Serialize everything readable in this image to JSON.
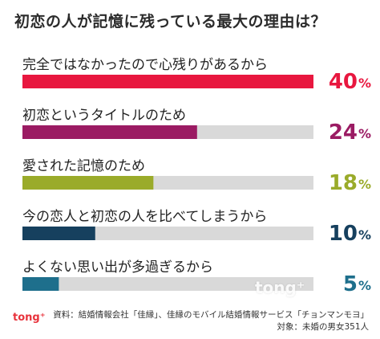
{
  "title": "初恋の人が記憶に残っている最大の理由は？",
  "chart_data": {
    "type": "bar",
    "orientation": "horizontal",
    "categories": [
      "完全ではなかったので心残りがあるから",
      "初恋というタイトルのため",
      "愛された記憶のため",
      "今の恋人と初恋の人を比べてしまうから",
      "よくない思い出が多過ぎるから"
    ],
    "values": [
      40,
      24,
      18,
      10,
      5
    ],
    "value_suffix": "%",
    "xlim": [
      0,
      40
    ],
    "colors": [
      "#e8173f",
      "#9b1b63",
      "#9aab2a",
      "#16405e",
      "#1e6f8c"
    ],
    "track_color": "#d9d9d9",
    "grid": false,
    "legend": "none"
  },
  "watermark": "tong⁺",
  "brand": "tong⁺",
  "source": {
    "line1": "資料：結婚情報会社「佳縁」、佳縁のモバイル結婚情報サービス「チョンマンモヨ」",
    "line2": "対象：未婚の男女351人"
  }
}
